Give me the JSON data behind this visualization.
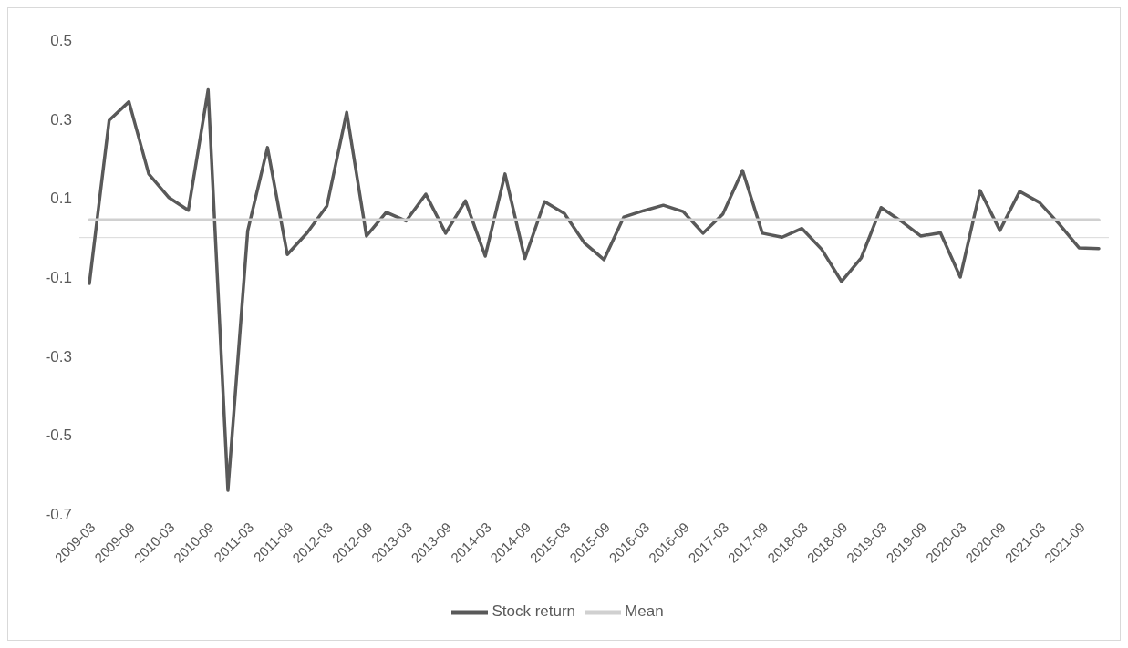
{
  "chart_data": {
    "type": "line",
    "categories": [
      "2009-03",
      null,
      "2009-09",
      null,
      "2010-03",
      null,
      "2010-09",
      null,
      "2011-03",
      null,
      "2011-09",
      null,
      "2012-03",
      null,
      "2012-09",
      null,
      "2013-03",
      null,
      "2013-09",
      null,
      "2014-03",
      null,
      "2014-09",
      null,
      "2015-03",
      null,
      "2015-09",
      null,
      "2016-03",
      null,
      "2016-09",
      null,
      "2017-03",
      null,
      "2017-09",
      null,
      "2018-03",
      null,
      "2018-09",
      null,
      "2019-03",
      null,
      "2019-09",
      null,
      "2020-03",
      null,
      "2020-09",
      null,
      "2021-03",
      null,
      "2021-09",
      null
    ],
    "series": [
      {
        "name": "Stock return",
        "color": "#595959",
        "values": [
          -0.116,
          0.297,
          0.344,
          0.161,
          0.102,
          0.069,
          0.374,
          -0.64,
          0.017,
          0.228,
          -0.043,
          0.012,
          0.08,
          0.317,
          0.004,
          0.064,
          0.042,
          0.11,
          0.011,
          0.093,
          -0.047,
          0.161,
          -0.053,
          0.091,
          0.061,
          -0.013,
          -0.056,
          0.052,
          0.068,
          0.082,
          0.066,
          0.011,
          0.059,
          0.17,
          0.011,
          0.001,
          0.023,
          -0.03,
          -0.111,
          -0.051,
          0.076,
          0.042,
          0.004,
          0.012,
          -0.1,
          0.119,
          0.018,
          0.117,
          0.089,
          0.034,
          -0.026,
          -0.028
        ]
      },
      {
        "name": "Mean",
        "color": "#d0d0d0",
        "values": [
          0.045,
          0.045,
          0.045,
          0.045,
          0.045,
          0.045,
          0.045,
          0.045,
          0.045,
          0.045,
          0.045,
          0.045,
          0.045,
          0.045,
          0.045,
          0.045,
          0.045,
          0.045,
          0.045,
          0.045,
          0.045,
          0.045,
          0.045,
          0.045,
          0.045,
          0.045,
          0.045,
          0.045,
          0.045,
          0.045,
          0.045,
          0.045,
          0.045,
          0.045,
          0.045,
          0.045,
          0.045,
          0.045,
          0.045,
          0.045,
          0.045,
          0.045,
          0.045,
          0.045,
          0.045,
          0.045,
          0.045,
          0.045,
          0.045,
          0.045,
          0.045,
          0.045
        ]
      }
    ],
    "ylim": [
      -0.7,
      0.5
    ],
    "yticks": [
      -0.7,
      -0.5,
      -0.3,
      -0.1,
      0.1,
      0.3,
      0.5
    ],
    "legend": "bottom",
    "line_style": "solid"
  }
}
